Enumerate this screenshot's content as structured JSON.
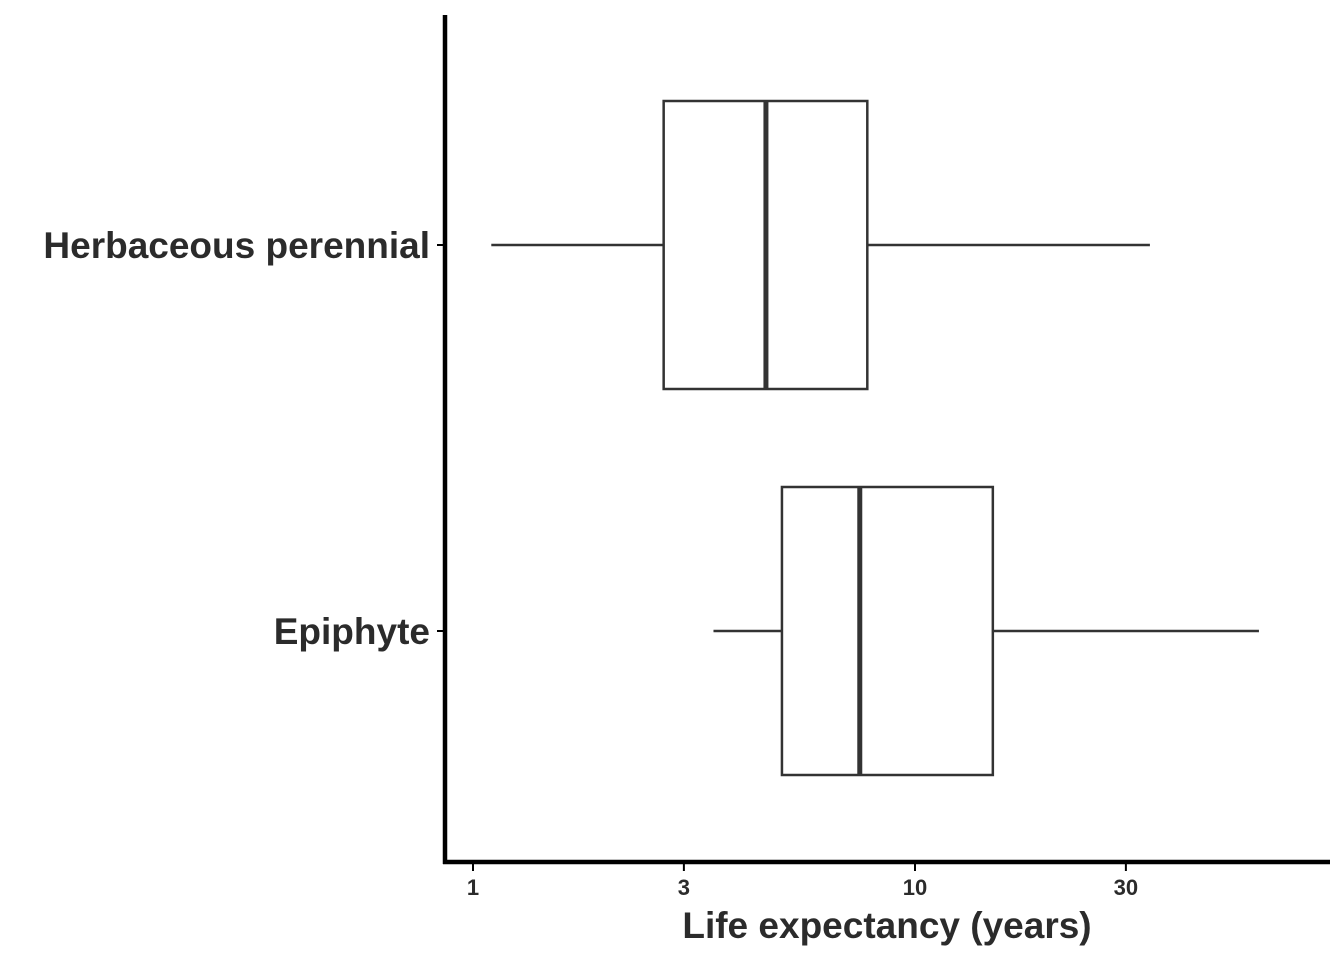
{
  "chart_data": {
    "type": "boxplot",
    "orientation": "horizontal",
    "title": "",
    "xlabel": "Life expectancy (years)",
    "ylabel": "",
    "xscale": "log10",
    "xlim": [
      0.9,
      70
    ],
    "xticks": [
      1,
      3,
      10,
      30
    ],
    "xtick_labels": [
      "1",
      "3",
      "10",
      "30"
    ],
    "grid": false,
    "legend": "none",
    "categories": [
      "Herbaceous perennial",
      "Epiphyte"
    ],
    "series": [
      {
        "category": "Herbaceous perennial",
        "whisker_low": 1.1,
        "q1": 2.7,
        "median": 4.6,
        "q3": 7.8,
        "whisker_high": 34
      },
      {
        "category": "Epiphyte",
        "whisker_low": 3.5,
        "q1": 5.0,
        "median": 7.5,
        "q3": 15,
        "whisker_high": 60
      }
    ],
    "colors": {
      "box_stroke": "#333333",
      "box_fill": "#ffffff",
      "axis": "#000000",
      "text": "#2b2b2b"
    }
  }
}
